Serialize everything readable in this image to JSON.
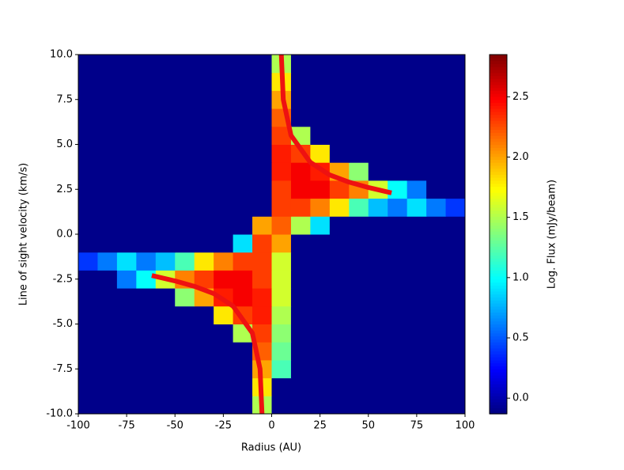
{
  "chart_data": {
    "type": "heatmap",
    "xlabel": "Radius (AU)",
    "ylabel": "Line of sight velocity (km/s)",
    "colorbar_label": "Log. Flux (mJy/beam)",
    "xbins": [
      -100,
      -90,
      -80,
      -70,
      -60,
      -50,
      -40,
      -30,
      -20,
      -10,
      0,
      10,
      20,
      30,
      40,
      50,
      60,
      70,
      80,
      90,
      100
    ],
    "ybins": [
      -10,
      -9,
      -8,
      -7,
      -6,
      -5,
      -4,
      -3,
      -2,
      -1,
      0,
      1,
      2,
      3,
      4,
      5,
      6,
      7,
      8,
      9,
      10
    ],
    "z": [
      [
        -0.1,
        -0.1,
        -0.1,
        -0.1,
        -0.1,
        -0.1,
        -0.1,
        -0.1,
        -0.1,
        1.5,
        -0.1,
        -0.1,
        -0.1,
        -0.1,
        -0.1,
        -0.1,
        -0.1,
        -0.1,
        -0.1,
        -0.1
      ],
      [
        -0.1,
        -0.1,
        -0.1,
        -0.1,
        -0.1,
        -0.1,
        -0.1,
        -0.1,
        -0.1,
        1.8,
        -0.1,
        -0.1,
        -0.1,
        -0.1,
        -0.1,
        -0.1,
        -0.1,
        -0.1,
        -0.1,
        -0.1
      ],
      [
        -0.1,
        -0.1,
        -0.1,
        -0.1,
        -0.1,
        -0.1,
        -0.1,
        -0.1,
        -0.1,
        2.0,
        1.2,
        -0.1,
        -0.1,
        -0.1,
        -0.1,
        -0.1,
        -0.1,
        -0.1,
        -0.1,
        -0.1
      ],
      [
        -0.1,
        -0.1,
        -0.1,
        -0.1,
        -0.1,
        -0.1,
        -0.1,
        -0.1,
        -0.1,
        2.2,
        1.3,
        -0.1,
        -0.1,
        -0.1,
        -0.1,
        -0.1,
        -0.1,
        -0.1,
        -0.1,
        -0.1
      ],
      [
        -0.1,
        -0.1,
        -0.1,
        -0.1,
        -0.1,
        -0.1,
        -0.1,
        -0.1,
        1.5,
        2.3,
        1.4,
        -0.1,
        -0.1,
        -0.1,
        -0.1,
        -0.1,
        -0.1,
        -0.1,
        -0.1,
        -0.1
      ],
      [
        -0.1,
        -0.1,
        -0.1,
        -0.1,
        -0.1,
        -0.1,
        -0.1,
        1.8,
        2.3,
        2.4,
        1.5,
        -0.1,
        -0.1,
        -0.1,
        -0.1,
        -0.1,
        -0.1,
        -0.1,
        -0.1,
        -0.1
      ],
      [
        -0.1,
        -0.1,
        -0.1,
        -0.1,
        -0.1,
        1.4,
        2.0,
        2.4,
        2.5,
        2.4,
        1.6,
        -0.1,
        -0.1,
        -0.1,
        -0.1,
        -0.1,
        -0.1,
        -0.1,
        -0.1,
        -0.1
      ],
      [
        -0.1,
        -0.1,
        0.6,
        1.0,
        1.6,
        2.1,
        2.3,
        2.5,
        2.5,
        2.3,
        1.6,
        -0.1,
        -0.1,
        -0.1,
        -0.1,
        -0.1,
        -0.1,
        -0.1,
        -0.1,
        -0.1
      ],
      [
        0.4,
        0.6,
        0.9,
        0.6,
        0.8,
        1.2,
        1.8,
        2.1,
        2.3,
        2.3,
        1.6,
        -0.1,
        -0.1,
        -0.1,
        -0.1,
        -0.1,
        -0.1,
        -0.1,
        -0.1,
        -0.1
      ],
      [
        -0.1,
        -0.1,
        -0.1,
        -0.1,
        -0.1,
        -0.1,
        -0.1,
        -0.1,
        0.9,
        2.3,
        2.0,
        -0.1,
        -0.1,
        -0.1,
        -0.1,
        -0.1,
        -0.1,
        -0.1,
        -0.1,
        -0.1
      ],
      [
        -0.1,
        -0.1,
        -0.1,
        -0.1,
        -0.1,
        -0.1,
        -0.1,
        -0.1,
        -0.1,
        2.0,
        2.2,
        1.5,
        0.9,
        -0.1,
        -0.1,
        -0.1,
        -0.1,
        -0.1,
        -0.1,
        -0.1
      ],
      [
        -0.1,
        -0.1,
        -0.1,
        -0.1,
        -0.1,
        -0.1,
        -0.1,
        -0.1,
        -0.1,
        -0.1,
        2.3,
        2.3,
        2.1,
        1.8,
        1.2,
        0.8,
        0.6,
        0.9,
        0.6,
        0.4
      ],
      [
        -0.1,
        -0.1,
        -0.1,
        -0.1,
        -0.1,
        -0.1,
        -0.1,
        -0.1,
        -0.1,
        -0.1,
        2.3,
        2.5,
        2.5,
        2.3,
        2.1,
        1.6,
        1.0,
        0.6,
        -0.1,
        -0.1
      ],
      [
        -0.1,
        -0.1,
        -0.1,
        -0.1,
        -0.1,
        -0.1,
        -0.1,
        -0.1,
        -0.1,
        -0.1,
        2.4,
        2.5,
        2.4,
        2.0,
        1.4,
        -0.1,
        -0.1,
        -0.1,
        -0.1,
        -0.1
      ],
      [
        -0.1,
        -0.1,
        -0.1,
        -0.1,
        -0.1,
        -0.1,
        -0.1,
        -0.1,
        -0.1,
        -0.1,
        2.4,
        2.3,
        1.8,
        -0.1,
        -0.1,
        -0.1,
        -0.1,
        -0.1,
        -0.1,
        -0.1
      ],
      [
        -0.1,
        -0.1,
        -0.1,
        -0.1,
        -0.1,
        -0.1,
        -0.1,
        -0.1,
        -0.1,
        -0.1,
        2.3,
        1.5,
        -0.1,
        -0.1,
        -0.1,
        -0.1,
        -0.1,
        -0.1,
        -0.1,
        -0.1
      ],
      [
        -0.1,
        -0.1,
        -0.1,
        -0.1,
        -0.1,
        -0.1,
        -0.1,
        -0.1,
        -0.1,
        -0.1,
        2.2,
        -0.1,
        -0.1,
        -0.1,
        -0.1,
        -0.1,
        -0.1,
        -0.1,
        -0.1,
        -0.1
      ],
      [
        -0.1,
        -0.1,
        -0.1,
        -0.1,
        -0.1,
        -0.1,
        -0.1,
        -0.1,
        -0.1,
        -0.1,
        2.0,
        -0.1,
        -0.1,
        -0.1,
        -0.1,
        -0.1,
        -0.1,
        -0.1,
        -0.1,
        -0.1
      ],
      [
        -0.1,
        -0.1,
        -0.1,
        -0.1,
        -0.1,
        -0.1,
        -0.1,
        -0.1,
        -0.1,
        -0.1,
        1.8,
        -0.1,
        -0.1,
        -0.1,
        -0.1,
        -0.1,
        -0.1,
        -0.1,
        -0.1,
        -0.1
      ],
      [
        -0.1,
        -0.1,
        -0.1,
        -0.1,
        -0.1,
        -0.1,
        -0.1,
        -0.1,
        -0.1,
        -0.1,
        1.5,
        -0.1,
        -0.1,
        -0.1,
        -0.1,
        -0.1,
        -0.1,
        -0.1,
        -0.1,
        -0.1
      ]
    ],
    "curves": [
      {
        "color": "#ee1111",
        "x": [
          5,
          6,
          10,
          20,
          30,
          40,
          50,
          62
        ],
        "y": [
          10,
          7.5,
          5.5,
          4,
          3.3,
          2.9,
          2.6,
          2.3
        ]
      },
      {
        "color": "#ee1111",
        "x": [
          -5,
          -6,
          -10,
          -20,
          -30,
          -40,
          -50,
          -62
        ],
        "y": [
          -10,
          -7.5,
          -5.5,
          -4,
          -3.3,
          -2.9,
          -2.6,
          -2.3
        ]
      }
    ],
    "xlim": [
      -100,
      100
    ],
    "xticks": [
      -100,
      -75,
      -50,
      -25,
      0,
      25,
      50,
      75,
      100
    ],
    "ylim": [
      -10,
      10
    ],
    "yticks": [
      {
        "value": -10,
        "label": "-10.0"
      },
      {
        "value": -7.5,
        "label": "-7.5"
      },
      {
        "value": -5,
        "label": "-5.0"
      },
      {
        "value": -2.5,
        "label": "-2.5"
      },
      {
        "value": 0,
        "label": "0.0"
      },
      {
        "value": 2.5,
        "label": "2.5"
      },
      {
        "value": 5,
        "label": "5.0"
      },
      {
        "value": 7.5,
        "label": "7.5"
      },
      {
        "value": 10,
        "label": "10.0"
      }
    ],
    "clim": [
      -0.13,
      2.85
    ],
    "cticks": [
      {
        "value": 0,
        "label": "0.0"
      },
      0.5,
      {
        "value": 1,
        "label": "1.0"
      },
      1.5,
      {
        "value": 2,
        "label": "2.0"
      },
      2.5
    ],
    "colormap": "jet"
  }
}
